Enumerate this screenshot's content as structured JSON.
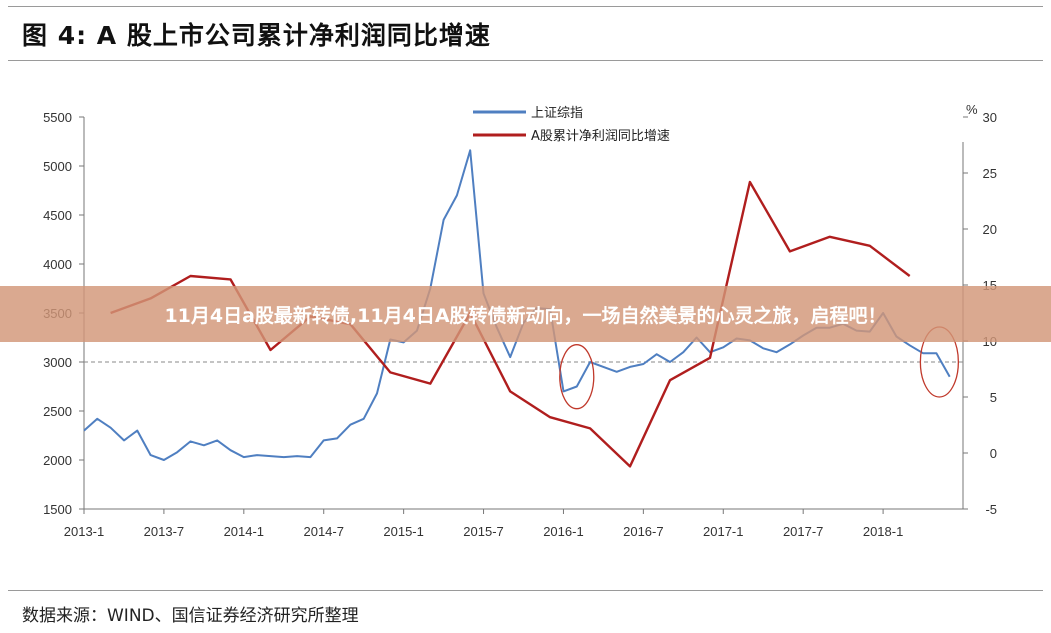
{
  "figure": {
    "title": "图 4:  A 股上市公司累计净利润同比增速",
    "banner": "11月4日a股最新转债,11月4日A股转债新动向，一场自然美景的心灵之旅，启程吧！",
    "source": "数据来源：WIND、国信证券经济研究所整理"
  },
  "colors": {
    "index_line": "#4f7fc1",
    "profit_line": "#b01e1e",
    "circle": "#c0392b",
    "ref_line": "#888888"
  },
  "chart_data": {
    "type": "line",
    "x_ticks": [
      "2013-1",
      "2013-7",
      "2014-1",
      "2014-7",
      "2015-1",
      "2015-7",
      "2016-1",
      "2016-7",
      "2017-1",
      "2017-7",
      "2018-1"
    ],
    "y_left": {
      "min": 1500,
      "max": 5500,
      "ticks": [
        1500,
        2000,
        2500,
        3000,
        3500,
        4000,
        4500,
        5000,
        5500
      ]
    },
    "y_right": {
      "min": -5,
      "max": 30,
      "ticks": [
        -5,
        0,
        5,
        10,
        15,
        20,
        25,
        30
      ],
      "unit": "%"
    },
    "reference_line_left": 3000,
    "legend": [
      "上证综指",
      "A股累计净利润同比增速"
    ],
    "series": [
      {
        "name": "上证综指",
        "axis": "left",
        "x": [
          "2013-01",
          "2013-02",
          "2013-03",
          "2013-04",
          "2013-05",
          "2013-06",
          "2013-07",
          "2013-08",
          "2013-09",
          "2013-10",
          "2013-11",
          "2013-12",
          "2014-01",
          "2014-02",
          "2014-03",
          "2014-04",
          "2014-05",
          "2014-06",
          "2014-07",
          "2014-08",
          "2014-09",
          "2014-10",
          "2014-11",
          "2014-12",
          "2015-01",
          "2015-02",
          "2015-03",
          "2015-04",
          "2015-05",
          "2015-06",
          "2015-07",
          "2015-08",
          "2015-09",
          "2015-10",
          "2015-11",
          "2015-12",
          "2016-01",
          "2016-02",
          "2016-03",
          "2016-04",
          "2016-05",
          "2016-06",
          "2016-07",
          "2016-08",
          "2016-09",
          "2016-10",
          "2016-11",
          "2016-12",
          "2017-01",
          "2017-02",
          "2017-03",
          "2017-04",
          "2017-05",
          "2017-06",
          "2017-07",
          "2017-08",
          "2017-09",
          "2017-10",
          "2017-11",
          "2017-12",
          "2018-01",
          "2018-02",
          "2018-03",
          "2018-04",
          "2018-05",
          "2018-06"
        ],
        "values": [
          2300,
          2420,
          2330,
          2200,
          2300,
          2050,
          2000,
          2080,
          2190,
          2150,
          2200,
          2100,
          2030,
          2050,
          2040,
          2030,
          2040,
          2030,
          2200,
          2220,
          2360,
          2420,
          2680,
          3230,
          3200,
          3320,
          3750,
          4450,
          4700,
          5160,
          3700,
          3350,
          3050,
          3400,
          3550,
          3540,
          2700,
          2750,
          3000,
          2950,
          2900,
          2950,
          2980,
          3080,
          3000,
          3100,
          3250,
          3100,
          3150,
          3240,
          3220,
          3140,
          3100,
          3180,
          3270,
          3350,
          3350,
          3390,
          3320,
          3310,
          3500,
          3260,
          3170,
          3090,
          3090,
          2850
        ]
      },
      {
        "name": "A股累计净利润同比增速",
        "axis": "right",
        "x": [
          "2013-03",
          "2013-06",
          "2013-09",
          "2013-12",
          "2014-03",
          "2014-06",
          "2014-09",
          "2014-12",
          "2015-03",
          "2015-06",
          "2015-09",
          "2015-12",
          "2016-03",
          "2016-06",
          "2016-09",
          "2016-12",
          "2017-03",
          "2017-06",
          "2017-09",
          "2017-12",
          "2018-03"
        ],
        "values": [
          12.5,
          13.8,
          15.8,
          15.5,
          9.2,
          12.2,
          11.5,
          7.2,
          6.2,
          12.5,
          5.5,
          3.2,
          2.2,
          -1.2,
          6.5,
          8.5,
          24.2,
          18.0,
          19.3,
          18.5,
          15.8
        ]
      }
    ],
    "annotations": [
      "circle around 2016-1 trough",
      "circle around 2018 decline"
    ]
  }
}
